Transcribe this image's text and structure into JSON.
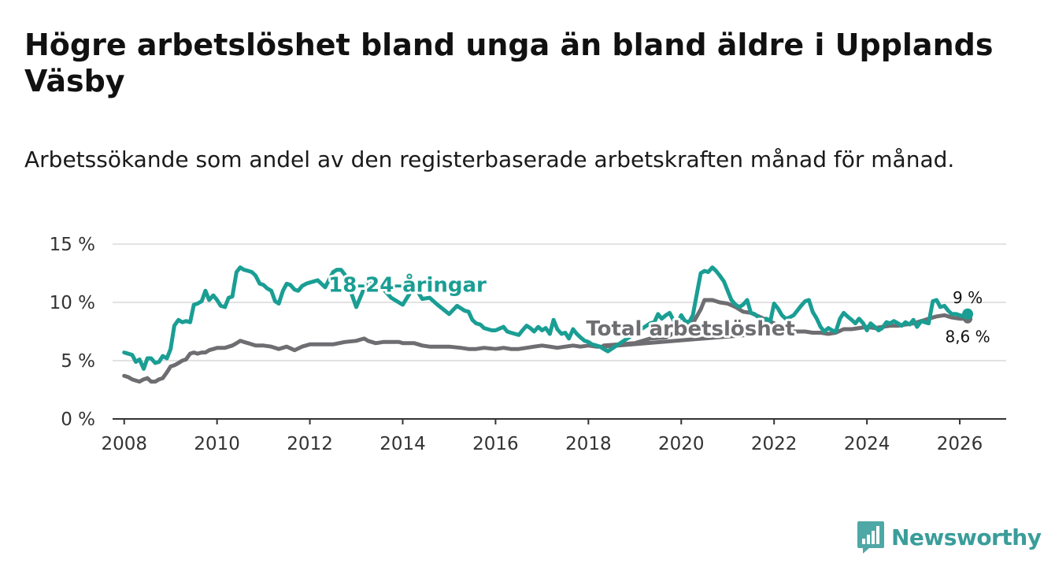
{
  "title": "Högre arbetslöshet bland unga än bland äldre i Upplands Väsby",
  "subtitle": "Arbetssökande som andel av den registerbaserade arbetskraften månad för månad.",
  "brand": "Newsworthy",
  "colors": {
    "youth": "#1a9e94",
    "total": "#6e6e72",
    "brand": "#3a9d9a"
  },
  "chart_data": {
    "type": "line",
    "title": "Högre arbetslöshet bland unga än bland äldre i Upplands Väsby",
    "xlabel": "",
    "ylabel": "",
    "xlim": [
      2007.75,
      2027.0
    ],
    "ylim": [
      0,
      15
    ],
    "grid": true,
    "x_ticks": [
      2008,
      2010,
      2012,
      2014,
      2016,
      2018,
      2020,
      2022,
      2024,
      2026
    ],
    "x_tick_labels": [
      "2008",
      "2010",
      "2012",
      "2014",
      "2016",
      "2018",
      "2020",
      "2022",
      "2024",
      "2026"
    ],
    "y_ticks": [
      0,
      5,
      10,
      15
    ],
    "y_tick_labels": [
      "0 %",
      "5 %",
      "10 %",
      "15 %"
    ],
    "series": [
      {
        "name": "18-24-åringar",
        "label": "18-24-åringar",
        "end_label": "9 %",
        "x": [
          2008.0,
          2008.17,
          2008.25,
          2008.33,
          2008.42,
          2008.5,
          2008.58,
          2008.67,
          2008.75,
          2008.83,
          2008.92,
          2009.0,
          2009.08,
          2009.17,
          2009.25,
          2009.33,
          2009.42,
          2009.5,
          2009.58,
          2009.67,
          2009.75,
          2009.83,
          2009.92,
          2010.0,
          2010.08,
          2010.17,
          2010.25,
          2010.33,
          2010.42,
          2010.5,
          2010.58,
          2010.67,
          2010.75,
          2010.83,
          2010.92,
          2011.0,
          2011.08,
          2011.17,
          2011.25,
          2011.33,
          2011.42,
          2011.5,
          2011.58,
          2011.67,
          2011.75,
          2011.83,
          2011.92,
          2012.0,
          2012.17,
          2012.33,
          2012.5,
          2012.58,
          2012.67,
          2012.75,
          2013.0,
          2013.25,
          2013.42,
          2013.5,
          2013.75,
          2014.0,
          2014.25,
          2014.42,
          2014.58,
          2014.75,
          2015.0,
          2015.17,
          2015.33,
          2015.42,
          2015.5,
          2015.58,
          2015.67,
          2015.75,
          2015.83,
          2015.92,
          2016.0,
          2016.17,
          2016.25,
          2016.33,
          2016.5,
          2016.58,
          2016.67,
          2016.75,
          2016.83,
          2016.92,
          2017.0,
          2017.08,
          2017.17,
          2017.25,
          2017.33,
          2017.42,
          2017.5,
          2017.58,
          2017.67,
          2017.75,
          2017.83,
          2017.92,
          2018.0,
          2018.08,
          2018.17,
          2018.25,
          2018.33,
          2018.42,
          2019.33,
          2019.42,
          2019.5,
          2019.58,
          2019.67,
          2019.75,
          2019.83,
          2019.92,
          2020.0,
          2020.08,
          2020.17,
          2020.25,
          2020.33,
          2020.42,
          2020.5,
          2020.58,
          2020.67,
          2020.75,
          2020.83,
          2020.92,
          2021.0,
          2021.08,
          2021.17,
          2021.25,
          2021.33,
          2021.42,
          2021.5,
          2021.58,
          2021.67,
          2021.75,
          2021.83,
          2021.92,
          2022.0,
          2022.08,
          2022.17,
          2022.25,
          2022.33,
          2022.42,
          2022.5,
          2022.58,
          2022.67,
          2022.75,
          2022.83,
          2022.92,
          2023.0,
          2023.08,
          2023.17,
          2023.25,
          2023.33,
          2023.42,
          2023.5,
          2023.58,
          2023.67,
          2023.75,
          2023.83,
          2023.92,
          2024.0,
          2024.08,
          2024.17,
          2024.25,
          2024.33,
          2024.42,
          2024.5,
          2024.58,
          2024.67,
          2024.75,
          2024.83,
          2024.92,
          2025.0,
          2025.08,
          2025.17,
          2025.25,
          2025.33,
          2025.42,
          2025.5,
          2025.58,
          2025.67,
          2025.75,
          2025.83,
          2025.92,
          2026.0,
          2026.08,
          2026.17
        ],
        "values": [
          5.7,
          5.5,
          4.9,
          5.1,
          4.3,
          5.2,
          5.2,
          4.8,
          4.9,
          5.4,
          5.2,
          6.0,
          8.0,
          8.5,
          8.3,
          8.4,
          8.3,
          9.8,
          9.9,
          10.1,
          11.0,
          10.2,
          10.6,
          10.2,
          9.7,
          9.6,
          10.4,
          10.5,
          12.6,
          13.0,
          12.8,
          12.7,
          12.6,
          12.3,
          11.6,
          11.5,
          11.2,
          11.0,
          10.1,
          9.9,
          11.0,
          11.6,
          11.5,
          11.1,
          11.0,
          11.4,
          11.6,
          11.7,
          11.9,
          11.3,
          12.6,
          12.8,
          12.8,
          12.4,
          9.6,
          12.0,
          11.6,
          11.5,
          10.4,
          9.8,
          11.4,
          10.3,
          10.4,
          9.8,
          9.0,
          9.7,
          9.3,
          9.2,
          8.5,
          8.2,
          8.1,
          7.8,
          7.7,
          7.6,
          7.6,
          7.9,
          7.5,
          7.4,
          7.2,
          7.6,
          8.0,
          7.8,
          7.5,
          7.9,
          7.6,
          7.8,
          7.3,
          8.5,
          7.7,
          7.3,
          7.4,
          6.9,
          7.7,
          7.3,
          7.0,
          6.7,
          6.6,
          6.4,
          6.3,
          6.2,
          6.0,
          5.8,
          8.2,
          8.3,
          9.0,
          8.6,
          8.9,
          9.1,
          8.5,
          8.2,
          8.9,
          8.4,
          8.3,
          8.9,
          10.6,
          12.5,
          12.7,
          12.6,
          13.0,
          12.7,
          12.3,
          11.8,
          11.0,
          10.2,
          9.8,
          9.6,
          9.8,
          10.2,
          9.1,
          9.0,
          8.7,
          8.4,
          8.6,
          8.4,
          9.9,
          9.5,
          8.9,
          8.6,
          8.7,
          8.9,
          9.3,
          9.7,
          10.1,
          10.2,
          9.2,
          8.6,
          7.9,
          7.5,
          7.8,
          7.6,
          7.5,
          8.6,
          9.1,
          8.8,
          8.5,
          8.2,
          8.6,
          8.2,
          7.6,
          8.2,
          7.9,
          7.6,
          7.8,
          8.3,
          8.2,
          8.4,
          8.2,
          8.0,
          8.3,
          8.1,
          8.5,
          7.9,
          8.4,
          8.3,
          8.2,
          10.1,
          10.2,
          9.6,
          9.7,
          9.3,
          9.0,
          9.0,
          8.9,
          8.8,
          9.0
        ]
      },
      {
        "name": "Total arbetslöshet",
        "label": "Total arbetslöshet",
        "end_label": "8,6 %",
        "x": [
          2008.0,
          2008.08,
          2008.17,
          2008.25,
          2008.33,
          2008.42,
          2008.5,
          2008.58,
          2008.67,
          2008.75,
          2008.83,
          2008.92,
          2009.0,
          2009.08,
          2009.17,
          2009.25,
          2009.33,
          2009.42,
          2009.5,
          2009.58,
          2009.67,
          2009.75,
          2009.83,
          2009.92,
          2010.0,
          2010.17,
          2010.33,
          2010.42,
          2010.5,
          2010.58,
          2010.67,
          2010.83,
          2011.0,
          2011.17,
          2011.33,
          2011.5,
          2011.67,
          2011.83,
          2012.0,
          2012.17,
          2012.33,
          2012.5,
          2012.75,
          2013.0,
          2013.08,
          2013.17,
          2013.25,
          2013.42,
          2013.58,
          2013.75,
          2013.92,
          2014.0,
          2014.25,
          2014.42,
          2014.58,
          2014.75,
          2015.0,
          2015.25,
          2015.42,
          2015.58,
          2015.75,
          2016.0,
          2016.17,
          2016.33,
          2016.5,
          2016.67,
          2016.83,
          2017.0,
          2017.17,
          2017.33,
          2017.5,
          2017.67,
          2017.83,
          2018.0,
          2018.17,
          2018.33,
          2022.33,
          2022.5,
          2022.67,
          2022.83,
          2023.0,
          2023.17,
          2023.33,
          2023.5,
          2023.67,
          2023.83,
          2024.0,
          2024.17,
          2024.33,
          2024.5,
          2024.67,
          2024.83,
          2025.0,
          2025.17,
          2025.33,
          2025.5,
          2025.67,
          2025.83,
          2026.0,
          2026.17
        ],
        "values": [
          3.7,
          3.6,
          3.4,
          3.3,
          3.2,
          3.4,
          3.5,
          3.2,
          3.2,
          3.4,
          3.5,
          4.0,
          4.5,
          4.6,
          4.8,
          5.0,
          5.1,
          5.6,
          5.7,
          5.6,
          5.7,
          5.7,
          5.9,
          6.0,
          6.1,
          6.1,
          6.3,
          6.5,
          6.7,
          6.6,
          6.5,
          6.3,
          6.3,
          6.2,
          6.0,
          6.2,
          5.9,
          6.2,
          6.4,
          6.4,
          6.4,
          6.4,
          6.6,
          6.7,
          6.8,
          6.9,
          6.7,
          6.5,
          6.6,
          6.6,
          6.6,
          6.5,
          6.5,
          6.3,
          6.2,
          6.2,
          6.2,
          6.1,
          6.0,
          6.0,
          6.1,
          6.0,
          6.1,
          6.0,
          6.0,
          6.1,
          6.2,
          6.3,
          6.2,
          6.1,
          6.2,
          6.3,
          6.2,
          6.3,
          6.2,
          6.2,
          7.5,
          7.5,
          7.5,
          7.4,
          7.4,
          7.3,
          7.4,
          7.7,
          7.7,
          7.8,
          7.9,
          7.8,
          7.9,
          8.0,
          8.0,
          8.1,
          8.2,
          8.4,
          8.6,
          8.8,
          8.9,
          8.7,
          8.6,
          8.6
        ]
      },
      {
        "name": "Total arbetslöshet (2018–2022)",
        "label": "",
        "end_label": "",
        "x": [
          2018.33,
          2018.67,
          2019.0,
          2019.33,
          2019.67,
          2020.0,
          2020.25,
          2020.42,
          2020.5,
          2020.58,
          2020.67,
          2020.83,
          2021.0,
          2021.17,
          2021.33,
          2021.5,
          2021.67,
          2021.83,
          2022.0,
          2022.17,
          2022.33
        ],
        "values": [
          6.3,
          6.4,
          6.5,
          6.9,
          7.0,
          7.7,
          8.2,
          9.4,
          10.2,
          10.2,
          10.2,
          10.0,
          9.9,
          9.6,
          9.2,
          9.1,
          8.8,
          8.5,
          8.2,
          7.9,
          7.5
        ]
      }
    ]
  }
}
